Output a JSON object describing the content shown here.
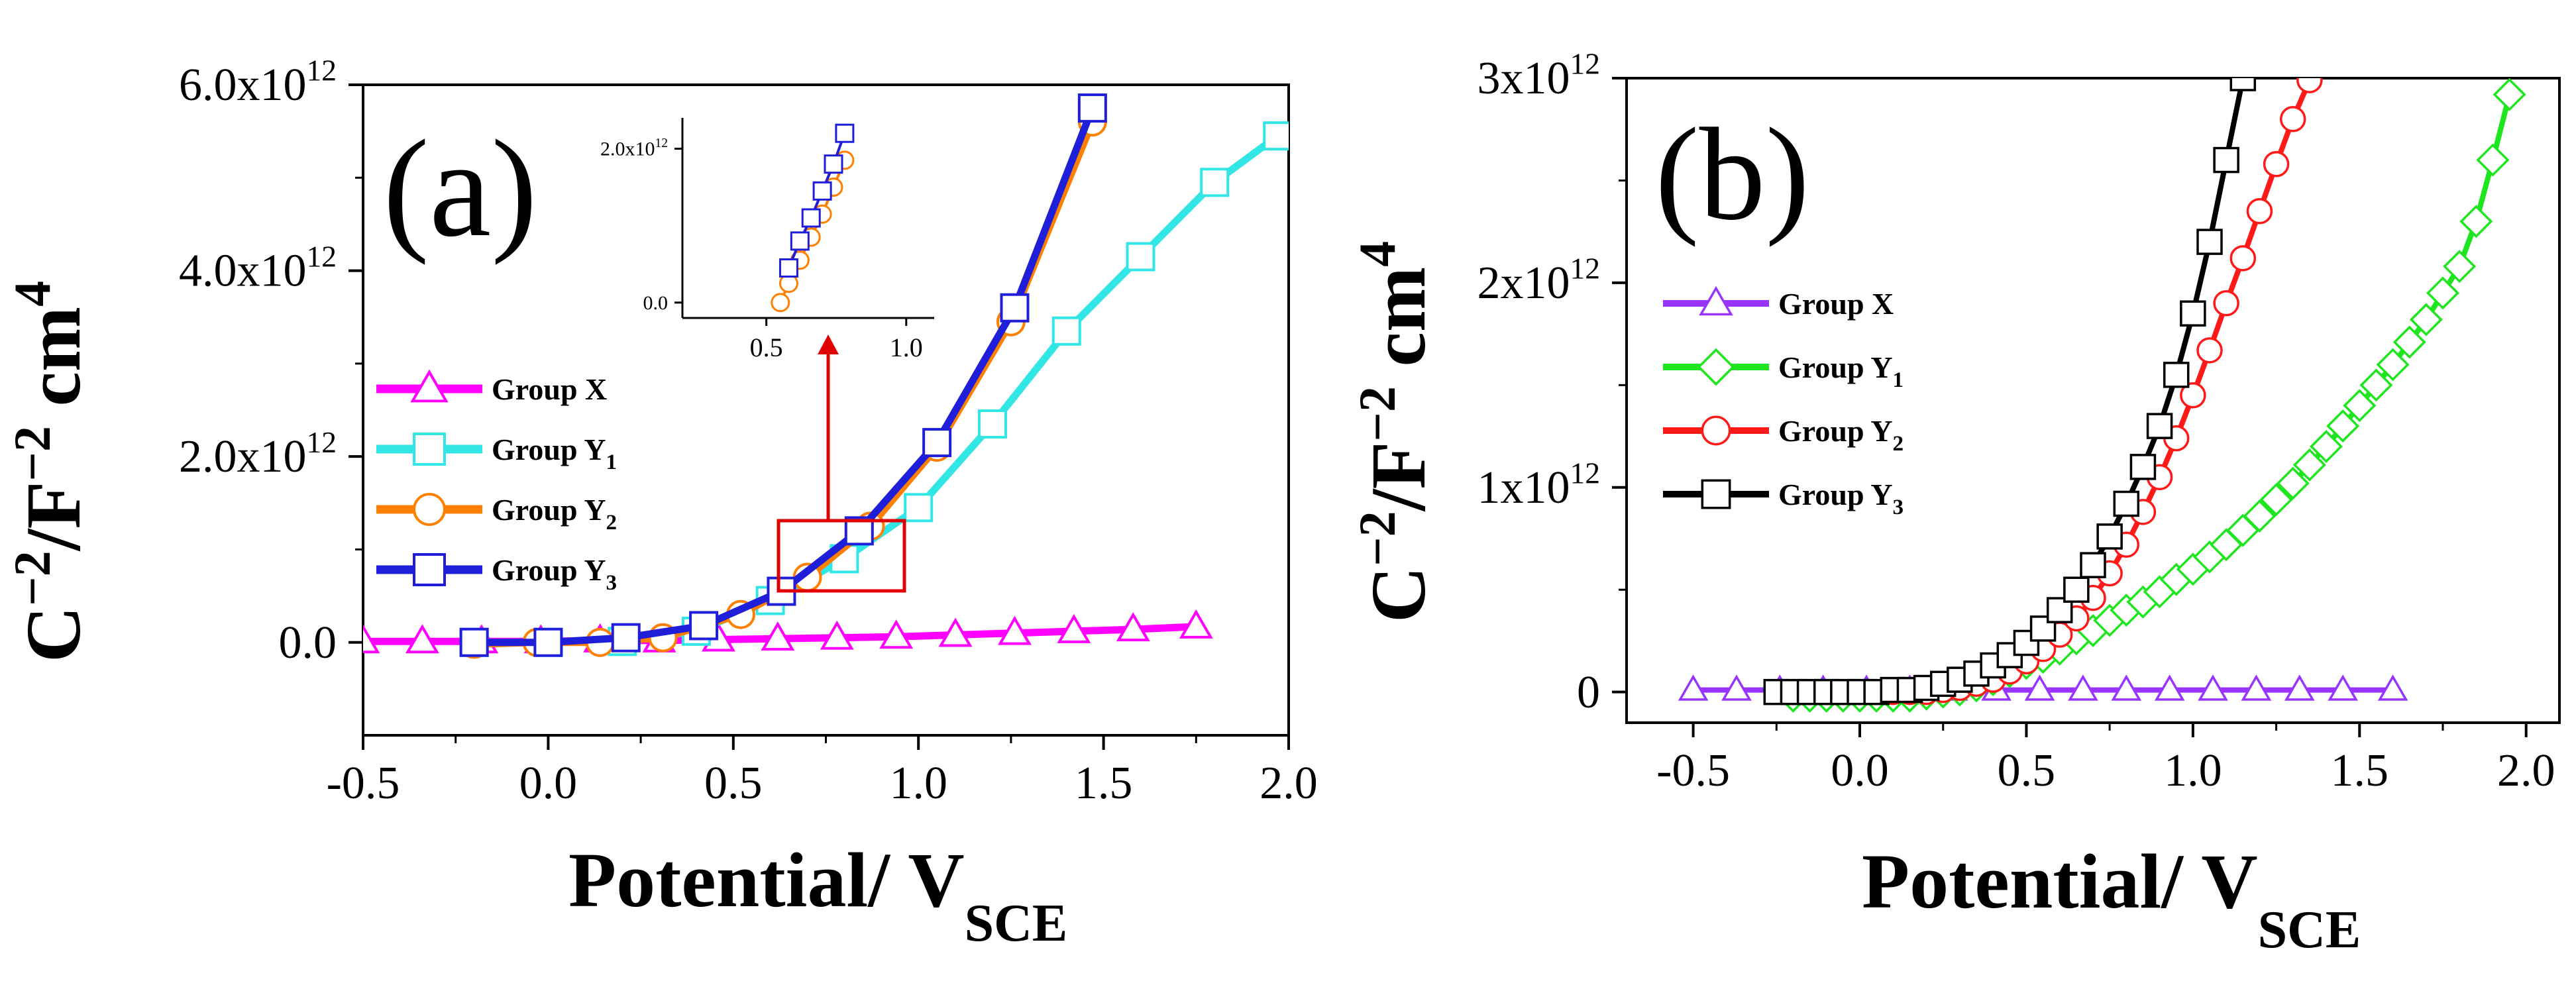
{
  "chart_data": [
    {
      "panel_label": "(a)",
      "type": "line",
      "xlabel": "Potential/ V",
      "xlabel_sub": "SCE",
      "ylabel": "C",
      "ylabel_exp": "−2",
      "ylabel_mid": "/F",
      "ylabel_exp2": "−2",
      "ylabel_unit": " cm",
      "ylabel_exp3": "4",
      "xlim": [
        -0.5,
        2.0
      ],
      "ylim": [
        -1000000000000.0,
        6000000000000.0
      ],
      "x_ticks": [
        -0.5,
        0.0,
        0.5,
        1.0,
        1.5,
        2.0
      ],
      "x_tick_labels": [
        "-0.5",
        "0.0",
        "0.5",
        "1.0",
        "1.5",
        "2.0"
      ],
      "y_ticks": [
        0,
        2000000000000.0,
        4000000000000.0,
        6000000000000.0
      ],
      "y_tick_labels": [
        {
          "base": "0.0",
          "exp": ""
        },
        {
          "base": "2.0x10",
          "exp": "12"
        },
        {
          "base": "4.0x10",
          "exp": "12"
        },
        {
          "base": "6.0x10",
          "exp": "12"
        }
      ],
      "legend": {
        "position": "left",
        "title_prefix": "Group "
      },
      "series": [
        {
          "name": "Group X",
          "label_main": "Group X",
          "label_sub": "",
          "color": "#ff00ff",
          "marker": "triangle",
          "x": [
            -0.5,
            -0.34,
            -0.18,
            -0.02,
            0.14,
            0.3,
            0.46,
            0.62,
            0.78,
            0.94,
            1.1,
            1.26,
            1.42,
            1.58,
            1.75
          ],
          "y": [
            10000000000.0,
            10000000000.0,
            10000000000.0,
            10000000000.0,
            20000000000.0,
            20000000000.0,
            30000000000.0,
            40000000000.0,
            50000000000.0,
            60000000000.0,
            80000000000.0,
            100000000000.0,
            120000000000.0,
            140000000000.0,
            170000000000.0
          ]
        },
        {
          "name": "Group Y1",
          "label_main": "Group Y",
          "label_sub": "1",
          "color": "#33e6e6",
          "marker": "square",
          "x": [
            -0.2,
            0.0,
            0.2,
            0.4,
            0.6,
            0.8,
            1.0,
            1.2,
            1.4,
            1.6,
            1.8,
            1.97
          ],
          "y": [
            0.0,
            0.0,
            10000000000.0,
            120000000000.0,
            450000000000.0,
            900000000000.0,
            1450000000000.0,
            2350000000000.0,
            3350000000000.0,
            4150000000000.0,
            4950000000000.0,
            5450000000000.0
          ]
        },
        {
          "name": "Group Y2",
          "label_main": "Group Y",
          "label_sub": "2",
          "color": "#ff8000",
          "marker": "circle",
          "x": [
            -0.2,
            -0.03,
            0.14,
            0.31,
            0.52,
            0.7,
            0.87,
            1.05,
            1.25,
            1.47
          ],
          "y": [
            -20000000000.0,
            0.0,
            0.0,
            50000000000.0,
            300000000000.0,
            700000000000.0,
            1250000000000.0,
            2100000000000.0,
            3450000000000.0,
            5600000000000.0
          ]
        },
        {
          "name": "Group Y3",
          "label_main": "Group Y",
          "label_sub": "3",
          "color": "#1f1fd9",
          "marker": "square",
          "x": [
            -0.2,
            0.0,
            0.21,
            0.42,
            0.63,
            0.84,
            1.05,
            1.26,
            1.47
          ],
          "y": [
            0.0,
            0.0,
            50000000000.0,
            180000000000.0,
            550000000000.0,
            1200000000000.0,
            2150000000000.0,
            3600000000000.0,
            5750000000000.0
          ]
        }
      ],
      "annotation": "red box around 0.62–0.95 V with arrow to inset",
      "inset": {
        "xlim": [
          0.2,
          1.1
        ],
        "ylim": [
          -200000000000.0,
          2400000000000.0
        ],
        "x_tick_labels": [
          "0.5",
          "1.0"
        ],
        "x_ticks": [
          0.5,
          1.0
        ],
        "y_ticks": [
          0,
          2000000000000.0
        ],
        "y_tick_labels": [
          {
            "base": "0.0",
            "exp": ""
          },
          {
            "base": "2.0x10",
            "exp": "12"
          }
        ],
        "series": [
          {
            "name": "Group Y2",
            "color": "#ff8000",
            "marker": "circle",
            "x": [
              0.55,
              0.58,
              0.62,
              0.66,
              0.7,
              0.74,
              0.78
            ],
            "y": [
              0.0,
              250000000000.0,
              550000000000.0,
              850000000000.0,
              1150000000000.0,
              1500000000000.0,
              1850000000000.0
            ]
          },
          {
            "name": "Group Y3",
            "color": "#1f1fd9",
            "marker": "square",
            "x": [
              0.58,
              0.62,
              0.66,
              0.7,
              0.74,
              0.78
            ],
            "y": [
              450000000000.0,
              800000000000.0,
              1100000000000.0,
              1450000000000.0,
              1800000000000.0,
              2200000000000.0
            ]
          }
        ]
      }
    },
    {
      "panel_label": "(b)",
      "type": "line",
      "xlabel": "Potential/ V",
      "xlabel_sub": "SCE",
      "ylabel": "C",
      "ylabel_exp": "−2",
      "ylabel_mid": "/F",
      "ylabel_exp2": "−2",
      "ylabel_unit": " cm",
      "ylabel_exp3": "4",
      "xlim": [
        -0.7,
        2.1
      ],
      "ylim": [
        -150000000000.0,
        3000000000000.0
      ],
      "x_ticks": [
        -0.5,
        0.0,
        0.5,
        1.0,
        1.5,
        2.0
      ],
      "x_tick_labels": [
        "-0.5",
        "0.0",
        "0.5",
        "1.0",
        "1.5",
        "2.0"
      ],
      "y_ticks": [
        0,
        1000000000000.0,
        2000000000000.0,
        3000000000000.0
      ],
      "y_tick_labels": [
        {
          "base": "0",
          "exp": ""
        },
        {
          "base": "1x10",
          "exp": "12"
        },
        {
          "base": "2x10",
          "exp": "12"
        },
        {
          "base": "3x10",
          "exp": "12"
        }
      ],
      "legend": {
        "position": "left"
      },
      "series": [
        {
          "name": "Group X",
          "label_main": "Group X",
          "label_sub": "",
          "color": "#9933ff",
          "marker": "triangle",
          "x": [
            -0.5,
            -0.37,
            -0.24,
            -0.11,
            0.02,
            0.15,
            0.28,
            0.41,
            0.54,
            0.67,
            0.8,
            0.93,
            1.06,
            1.19,
            1.32,
            1.45,
            1.6
          ],
          "y": [
            10000000000.0,
            10000000000.0,
            10000000000.0,
            10000000000.0,
            10000000000.0,
            10000000000.0,
            10000000000.0,
            10000000000.0,
            10000000000.0,
            10000000000.0,
            10000000000.0,
            10000000000.0,
            10000000000.0,
            10000000000.0,
            10000000000.0,
            10000000000.0,
            10000000000.0
          ]
        },
        {
          "name": "Group Y1",
          "label_main": "Group Y",
          "label_sub": "1",
          "color": "#1ee61e",
          "marker": "diamond",
          "x": [
            -0.2,
            -0.15,
            -0.1,
            -0.05,
            0.0,
            0.05,
            0.1,
            0.15,
            0.2,
            0.25,
            0.3,
            0.35,
            0.4,
            0.45,
            0.5,
            0.55,
            0.6,
            0.65,
            0.7,
            0.75,
            0.8,
            0.85,
            0.9,
            0.95,
            1.0,
            1.05,
            1.1,
            1.15,
            1.2,
            1.25,
            1.3,
            1.35,
            1.4,
            1.45,
            1.5,
            1.55,
            1.6,
            1.65,
            1.7,
            1.75,
            1.8,
            1.85,
            1.9,
            1.95
          ],
          "y": [
            -20000000000.0,
            -20000000000.0,
            -20000000000.0,
            -20000000000.0,
            -20000000000.0,
            -20000000000.0,
            -20000000000.0,
            -20000000000.0,
            -10000000000.0,
            0.0,
            10000000000.0,
            30000000000.0,
            60000000000.0,
            100000000000.0,
            140000000000.0,
            170000000000.0,
            210000000000.0,
            260000000000.0,
            300000000000.0,
            350000000000.0,
            400000000000.0,
            440000000000.0,
            490000000000.0,
            550000000000.0,
            600000000000.0,
            660000000000.0,
            720000000000.0,
            790000000000.0,
            860000000000.0,
            940000000000.0,
            1020000000000.0,
            1110000000000.0,
            1200000000000.0,
            1300000000000.0,
            1400000000000.0,
            1500000000000.0,
            1600000000000.0,
            1710000000000.0,
            1820000000000.0,
            1950000000000.0,
            2080000000000.0,
            2300000000000.0,
            2600000000000.0,
            2920000000000.0
          ]
        },
        {
          "name": "Group Y2",
          "label_main": "Group Y",
          "label_sub": "2",
          "color": "#ff1a1a",
          "marker": "circle",
          "x": [
            -0.2,
            -0.15,
            -0.1,
            -0.05,
            0.0,
            0.05,
            0.1,
            0.15,
            0.2,
            0.25,
            0.3,
            0.35,
            0.4,
            0.45,
            0.5,
            0.55,
            0.6,
            0.65,
            0.7,
            0.75,
            0.8,
            0.85,
            0.9,
            0.95,
            1.0,
            1.05,
            1.1,
            1.15,
            1.2,
            1.25,
            1.3,
            1.35
          ],
          "y": [
            0.0,
            0.0,
            0.0,
            0.0,
            0.0,
            0.0,
            0.0,
            0.0,
            0.0,
            10000000000.0,
            20000000000.0,
            40000000000.0,
            60000000000.0,
            100000000000.0,
            150000000000.0,
            210000000000.0,
            280000000000.0,
            360000000000.0,
            460000000000.0,
            580000000000.0,
            720000000000.0,
            880000000000.0,
            1050000000000.0,
            1240000000000.0,
            1450000000000.0,
            1670000000000.0,
            1900000000000.0,
            2120000000000.0,
            2350000000000.0,
            2580000000000.0,
            2800000000000.0,
            2990000000000.0
          ]
        },
        {
          "name": "Group Y3",
          "label_main": "Group Y",
          "label_sub": "3",
          "color": "#000000",
          "marker": "square",
          "x": [
            -0.25,
            -0.2,
            -0.15,
            -0.1,
            -0.05,
            0.0,
            0.05,
            0.1,
            0.15,
            0.2,
            0.25,
            0.3,
            0.35,
            0.4,
            0.45,
            0.5,
            0.55,
            0.6,
            0.65,
            0.7,
            0.75,
            0.8,
            0.85,
            0.9,
            0.95,
            1.0,
            1.05,
            1.1,
            1.15
          ],
          "y": [
            0.0,
            0.0,
            0.0,
            0.0,
            0.0,
            0.0,
            0.0,
            10000000000.0,
            10000000000.0,
            20000000000.0,
            40000000000.0,
            60000000000.0,
            90000000000.0,
            130000000000.0,
            180000000000.0,
            240000000000.0,
            310000000000.0,
            400000000000.0,
            500000000000.0,
            620000000000.0,
            760000000000.0,
            920000000000.0,
            1100000000000.0,
            1300000000000.0,
            1550000000000.0,
            1850000000000.0,
            2200000000000.0,
            2600000000000.0,
            3000000000000.0
          ]
        }
      ]
    }
  ]
}
